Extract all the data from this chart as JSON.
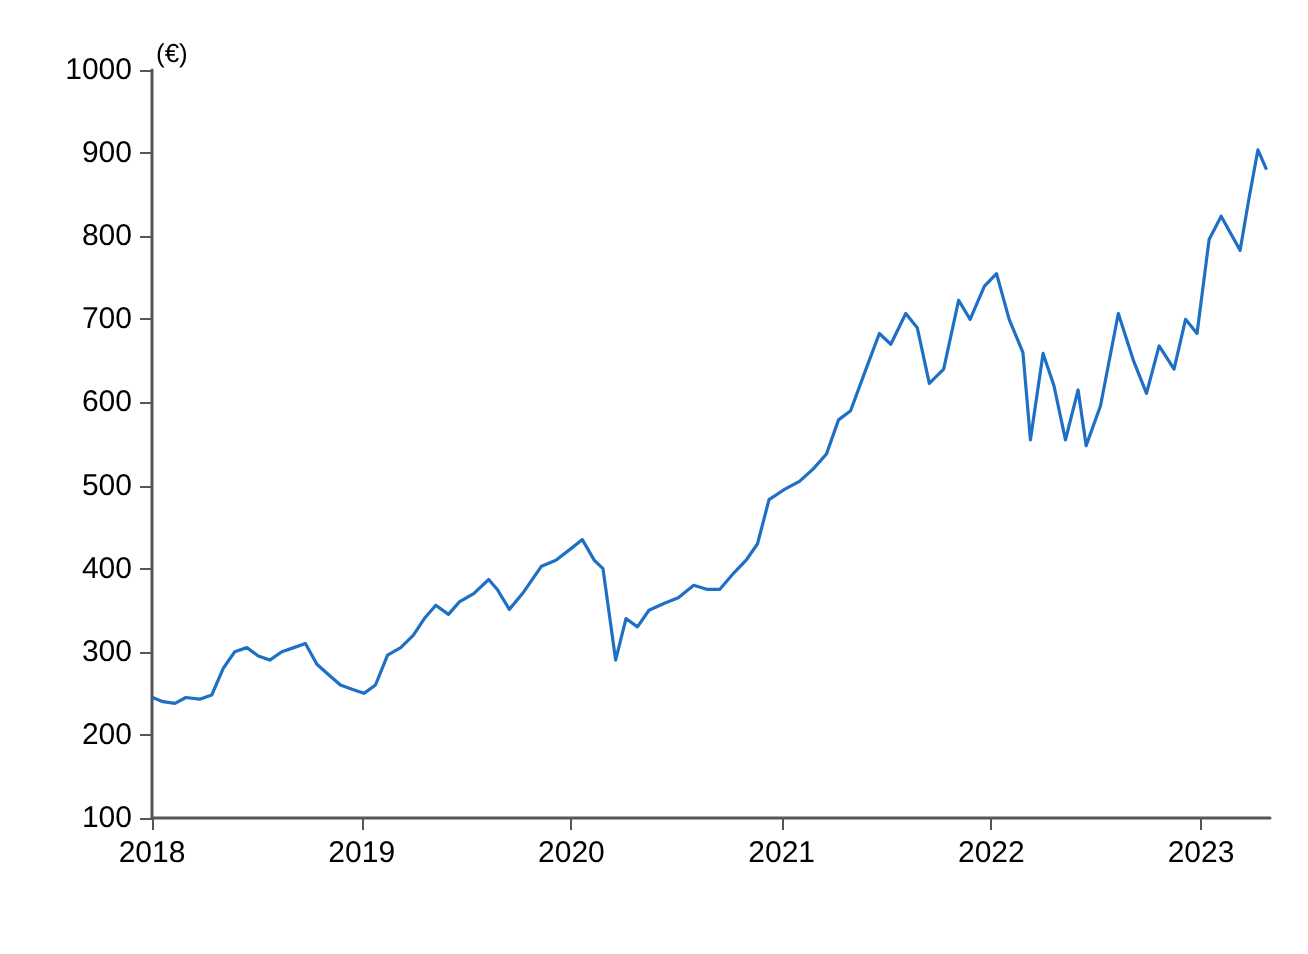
{
  "chart_data": {
    "type": "line",
    "ylabel": "(€)",
    "x": [
      "2018-01-02",
      "2018-01-20",
      "2018-02-10",
      "2018-03-01",
      "2018-03-25",
      "2018-04-15",
      "2018-05-05",
      "2018-05-25",
      "2018-06-15",
      "2018-07-05",
      "2018-07-25",
      "2018-08-15",
      "2018-09-05",
      "2018-09-25",
      "2018-10-15",
      "2018-11-05",
      "2018-11-25",
      "2018-12-15",
      "2019-01-05",
      "2019-01-25",
      "2019-02-15",
      "2019-03-10",
      "2019-04-01",
      "2019-04-20",
      "2019-05-10",
      "2019-06-01",
      "2019-06-20",
      "2019-07-15",
      "2019-08-10",
      "2019-08-25",
      "2019-09-15",
      "2019-10-10",
      "2019-11-10",
      "2019-12-05",
      "2020-01-02",
      "2020-01-20",
      "2020-02-10",
      "2020-02-25",
      "2020-03-18",
      "2020-04-05",
      "2020-04-25",
      "2020-05-15",
      "2020-06-10",
      "2020-07-05",
      "2020-08-01",
      "2020-08-25",
      "2020-09-15",
      "2020-10-10",
      "2020-11-01",
      "2020-11-20",
      "2020-12-10",
      "2021-01-05",
      "2021-02-01",
      "2021-02-25",
      "2021-03-20",
      "2021-04-10",
      "2021-05-01",
      "2021-05-25",
      "2021-06-20",
      "2021-07-10",
      "2021-08-05",
      "2021-08-25",
      "2021-09-15",
      "2021-10-10",
      "2021-11-05",
      "2021-11-25",
      "2021-12-20",
      "2022-01-10",
      "2022-02-01",
      "2022-02-25",
      "2022-03-10",
      "2022-04-01",
      "2022-04-20",
      "2022-05-10",
      "2022-06-01",
      "2022-06-15",
      "2022-07-10",
      "2022-08-10",
      "2022-09-05",
      "2022-09-28",
      "2022-10-20",
      "2022-11-15",
      "2022-12-05",
      "2022-12-25",
      "2023-01-15",
      "2023-02-05",
      "2023-03-10",
      "2023-03-25",
      "2023-04-10",
      "2023-04-25"
    ],
    "values": [
      245,
      240,
      238,
      245,
      243,
      248,
      280,
      300,
      305,
      295,
      290,
      300,
      305,
      310,
      285,
      272,
      260,
      255,
      250,
      260,
      296,
      305,
      320,
      340,
      356,
      345,
      360,
      370,
      387,
      375,
      351,
      372,
      403,
      410,
      425,
      435,
      410,
      400,
      290,
      340,
      330,
      350,
      358,
      365,
      380,
      375,
      375,
      395,
      411,
      430,
      483,
      495,
      505,
      520,
      538,
      579,
      590,
      635,
      683,
      670,
      707,
      690,
      623,
      640,
      723,
      700,
      740,
      755,
      700,
      660,
      555,
      659,
      620,
      555,
      615,
      548,
      596,
      707,
      651,
      611,
      668,
      640,
      700,
      683,
      796,
      824,
      783,
      844,
      904,
      880
    ],
    "color": "#1f6fc5",
    "xlim": [
      "2018-01-01",
      "2023-05-01"
    ],
    "xticks": [
      "2018",
      "2019",
      "2020",
      "2021",
      "2022",
      "2023"
    ],
    "ylim": [
      100,
      1000
    ],
    "yticks": [
      100,
      200,
      300,
      400,
      500,
      600,
      700,
      800,
      900,
      1000
    ],
    "marker": "none",
    "line_style": "solid"
  }
}
